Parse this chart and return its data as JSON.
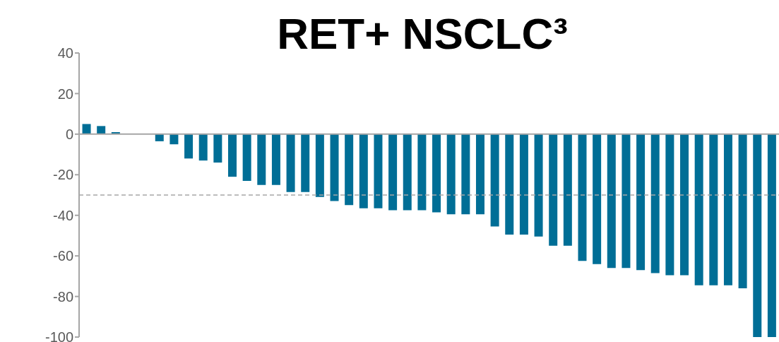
{
  "chart_data": {
    "type": "bar",
    "title": "RET+ NSCLC³",
    "categories": [
      null,
      null,
      null,
      null,
      null,
      null,
      null,
      null,
      null,
      null,
      null,
      null,
      null,
      null,
      null,
      null,
      null,
      null,
      null,
      null,
      null,
      null,
      null,
      null,
      null,
      null,
      null,
      null,
      null,
      null,
      null,
      null,
      null,
      null,
      null,
      null,
      null,
      null,
      null,
      null,
      null,
      null,
      null,
      null,
      null,
      null,
      null,
      null
    ],
    "values": [
      5,
      4,
      1,
      0,
      0,
      -3.5,
      -5,
      -12,
      -13,
      -14,
      -21,
      -23,
      -25,
      -25,
      -28.5,
      -28.5,
      -31,
      -33,
      -35,
      -36.5,
      -36.5,
      -37.5,
      -37.5,
      -37.5,
      -38.5,
      -39.5,
      -39.5,
      -39.5,
      -45.5,
      -49.5,
      -49.5,
      -50.5,
      -55,
      -55,
      -62.5,
      -64,
      -66,
      -66,
      -67,
      -68.5,
      -69.5,
      -69.5,
      -74.5,
      -74.5,
      -74.5,
      -76,
      -100,
      -100
    ],
    "color": "#006e96",
    "ylim": [
      -100,
      40
    ],
    "yticks": [
      -100,
      -80,
      -60,
      -40,
      -20,
      0,
      20,
      40
    ],
    "ref_lines": [
      {
        "axis": "y",
        "value": -30,
        "color": "#a6a6a6",
        "line_style": "dashed"
      }
    ],
    "tick_labels": "y"
  }
}
